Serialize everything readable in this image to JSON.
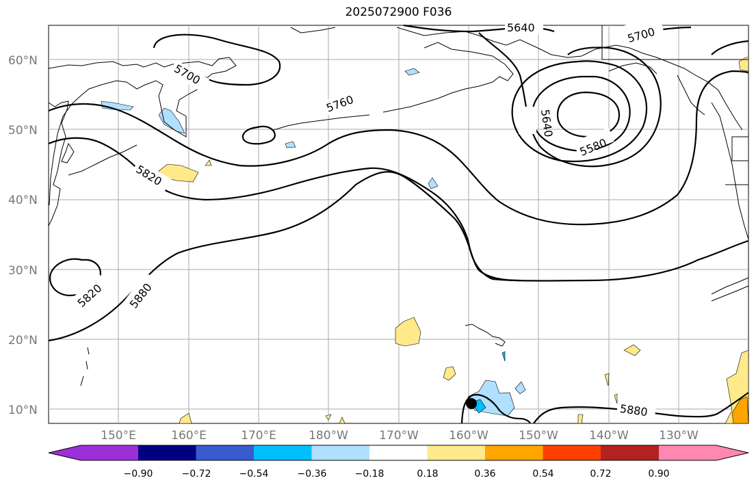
{
  "title": "2025072900 F036",
  "lat_labels": [
    "60°N",
    "50°N",
    "40°N",
    "30°N",
    "20°N",
    "10°N"
  ],
  "lon_labels": [
    "150°E",
    "160°E",
    "170°E",
    "180°W",
    "170°W",
    "160°W",
    "150°W",
    "140°W",
    "130°W"
  ],
  "contour_labels": [
    "5640",
    "5700",
    "5700",
    "5760",
    "5640",
    "5580",
    "5820",
    "5820",
    "5880",
    "5880"
  ],
  "colorbar": {
    "colors": [
      "#9b30d8",
      "#000080",
      "#3a5bd0",
      "#00bfff",
      "#b0e0ff",
      "#ffffff",
      "#ffe98a",
      "#ffa500",
      "#ff4000",
      "#b22222",
      "#ff88b0"
    ],
    "tick_labels": [
      "−0.90",
      "−0.72",
      "−0.54",
      "−0.36",
      "−0.18",
      "0.18",
      "0.36",
      "0.54",
      "0.72",
      "0.90"
    ]
  },
  "colors": {
    "positive_fill": "#ffe98a",
    "negative_fill": "#b0e0ff",
    "strong_negative": "#00bfff",
    "grid": "#a0a0a0",
    "contour": "#000000"
  }
}
